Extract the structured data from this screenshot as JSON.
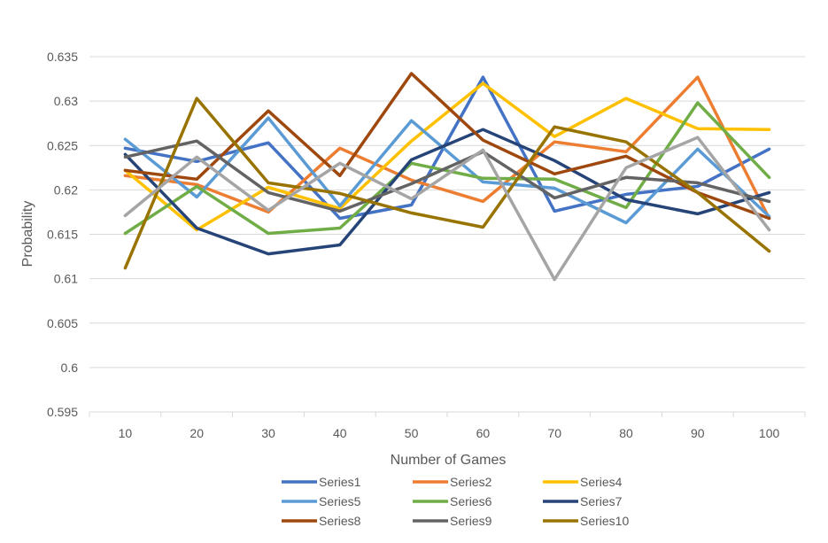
{
  "chart_data": {
    "type": "line",
    "title": "",
    "xlabel": "Number of Games",
    "ylabel": "Probability",
    "categories": [
      "10",
      "20",
      "30",
      "40",
      "50",
      "60",
      "70",
      "80",
      "90",
      "100"
    ],
    "ylim": [
      0.595,
      0.635
    ],
    "yticks": [
      "0.595",
      "0.6",
      "0.605",
      "0.61",
      "0.615",
      "0.62",
      "0.625",
      "0.63",
      "0.635"
    ],
    "grid": true,
    "legend_position": "bottom",
    "series": [
      {
        "name": "Series1",
        "color": "#4472C4",
        "values": [
          0.6247,
          0.6232,
          0.6253,
          0.6168,
          0.6183,
          0.6327,
          0.6176,
          0.6195,
          0.6204,
          0.6246
        ]
      },
      {
        "name": "Series2",
        "color": "#ED7D31",
        "values": [
          0.6216,
          0.6206,
          0.6175,
          0.6247,
          0.6211,
          0.6187,
          0.6254,
          0.6243,
          0.6327,
          0.6168
        ]
      },
      {
        "name": "Series4",
        "color": "#FFC000",
        "values": [
          0.6222,
          0.6155,
          0.6203,
          0.6179,
          0.6255,
          0.632,
          0.626,
          0.6303,
          0.6269,
          0.6268
        ]
      },
      {
        "name": "Series5",
        "color": "#5B9BD5",
        "values": [
          0.6257,
          0.6192,
          0.6281,
          0.6182,
          0.6278,
          0.6209,
          0.6202,
          0.6163,
          0.6246,
          0.617
        ]
      },
      {
        "name": "Series6",
        "color": "#70AD47",
        "values": [
          0.6151,
          0.6204,
          0.6151,
          0.6157,
          0.623,
          0.6213,
          0.6212,
          0.618,
          0.6298,
          0.6214
        ]
      },
      {
        "name": "Series7",
        "color": "#264478",
        "values": [
          0.624,
          0.6157,
          0.6128,
          0.6138,
          0.6234,
          0.6268,
          0.6233,
          0.6189,
          0.6173,
          0.6197
        ]
      },
      {
        "name": "Series8",
        "color": "#9E480E",
        "values": [
          0.6222,
          0.6212,
          0.6289,
          0.6216,
          0.6331,
          0.6256,
          0.6218,
          0.6238,
          0.6197,
          0.6168
        ]
      },
      {
        "name": "Series9",
        "color": "#636363",
        "values": [
          0.6237,
          0.6255,
          0.6197,
          0.6176,
          0.6207,
          0.6243,
          0.6191,
          0.6214,
          0.6208,
          0.6187
        ]
      },
      {
        "name": "Series10",
        "color": "#997300",
        "values": [
          0.6112,
          0.6303,
          0.6208,
          0.6196,
          0.6174,
          0.6158,
          0.6271,
          0.6254,
          0.6197,
          0.6131
        ]
      },
      {
        "name": "",
        "color": "#A5A5A5",
        "in_legend": false,
        "values": [
          0.6171,
          0.6237,
          0.6177,
          0.623,
          0.619,
          0.6245,
          0.6099,
          0.6225,
          0.6259,
          0.6155
        ]
      }
    ]
  }
}
